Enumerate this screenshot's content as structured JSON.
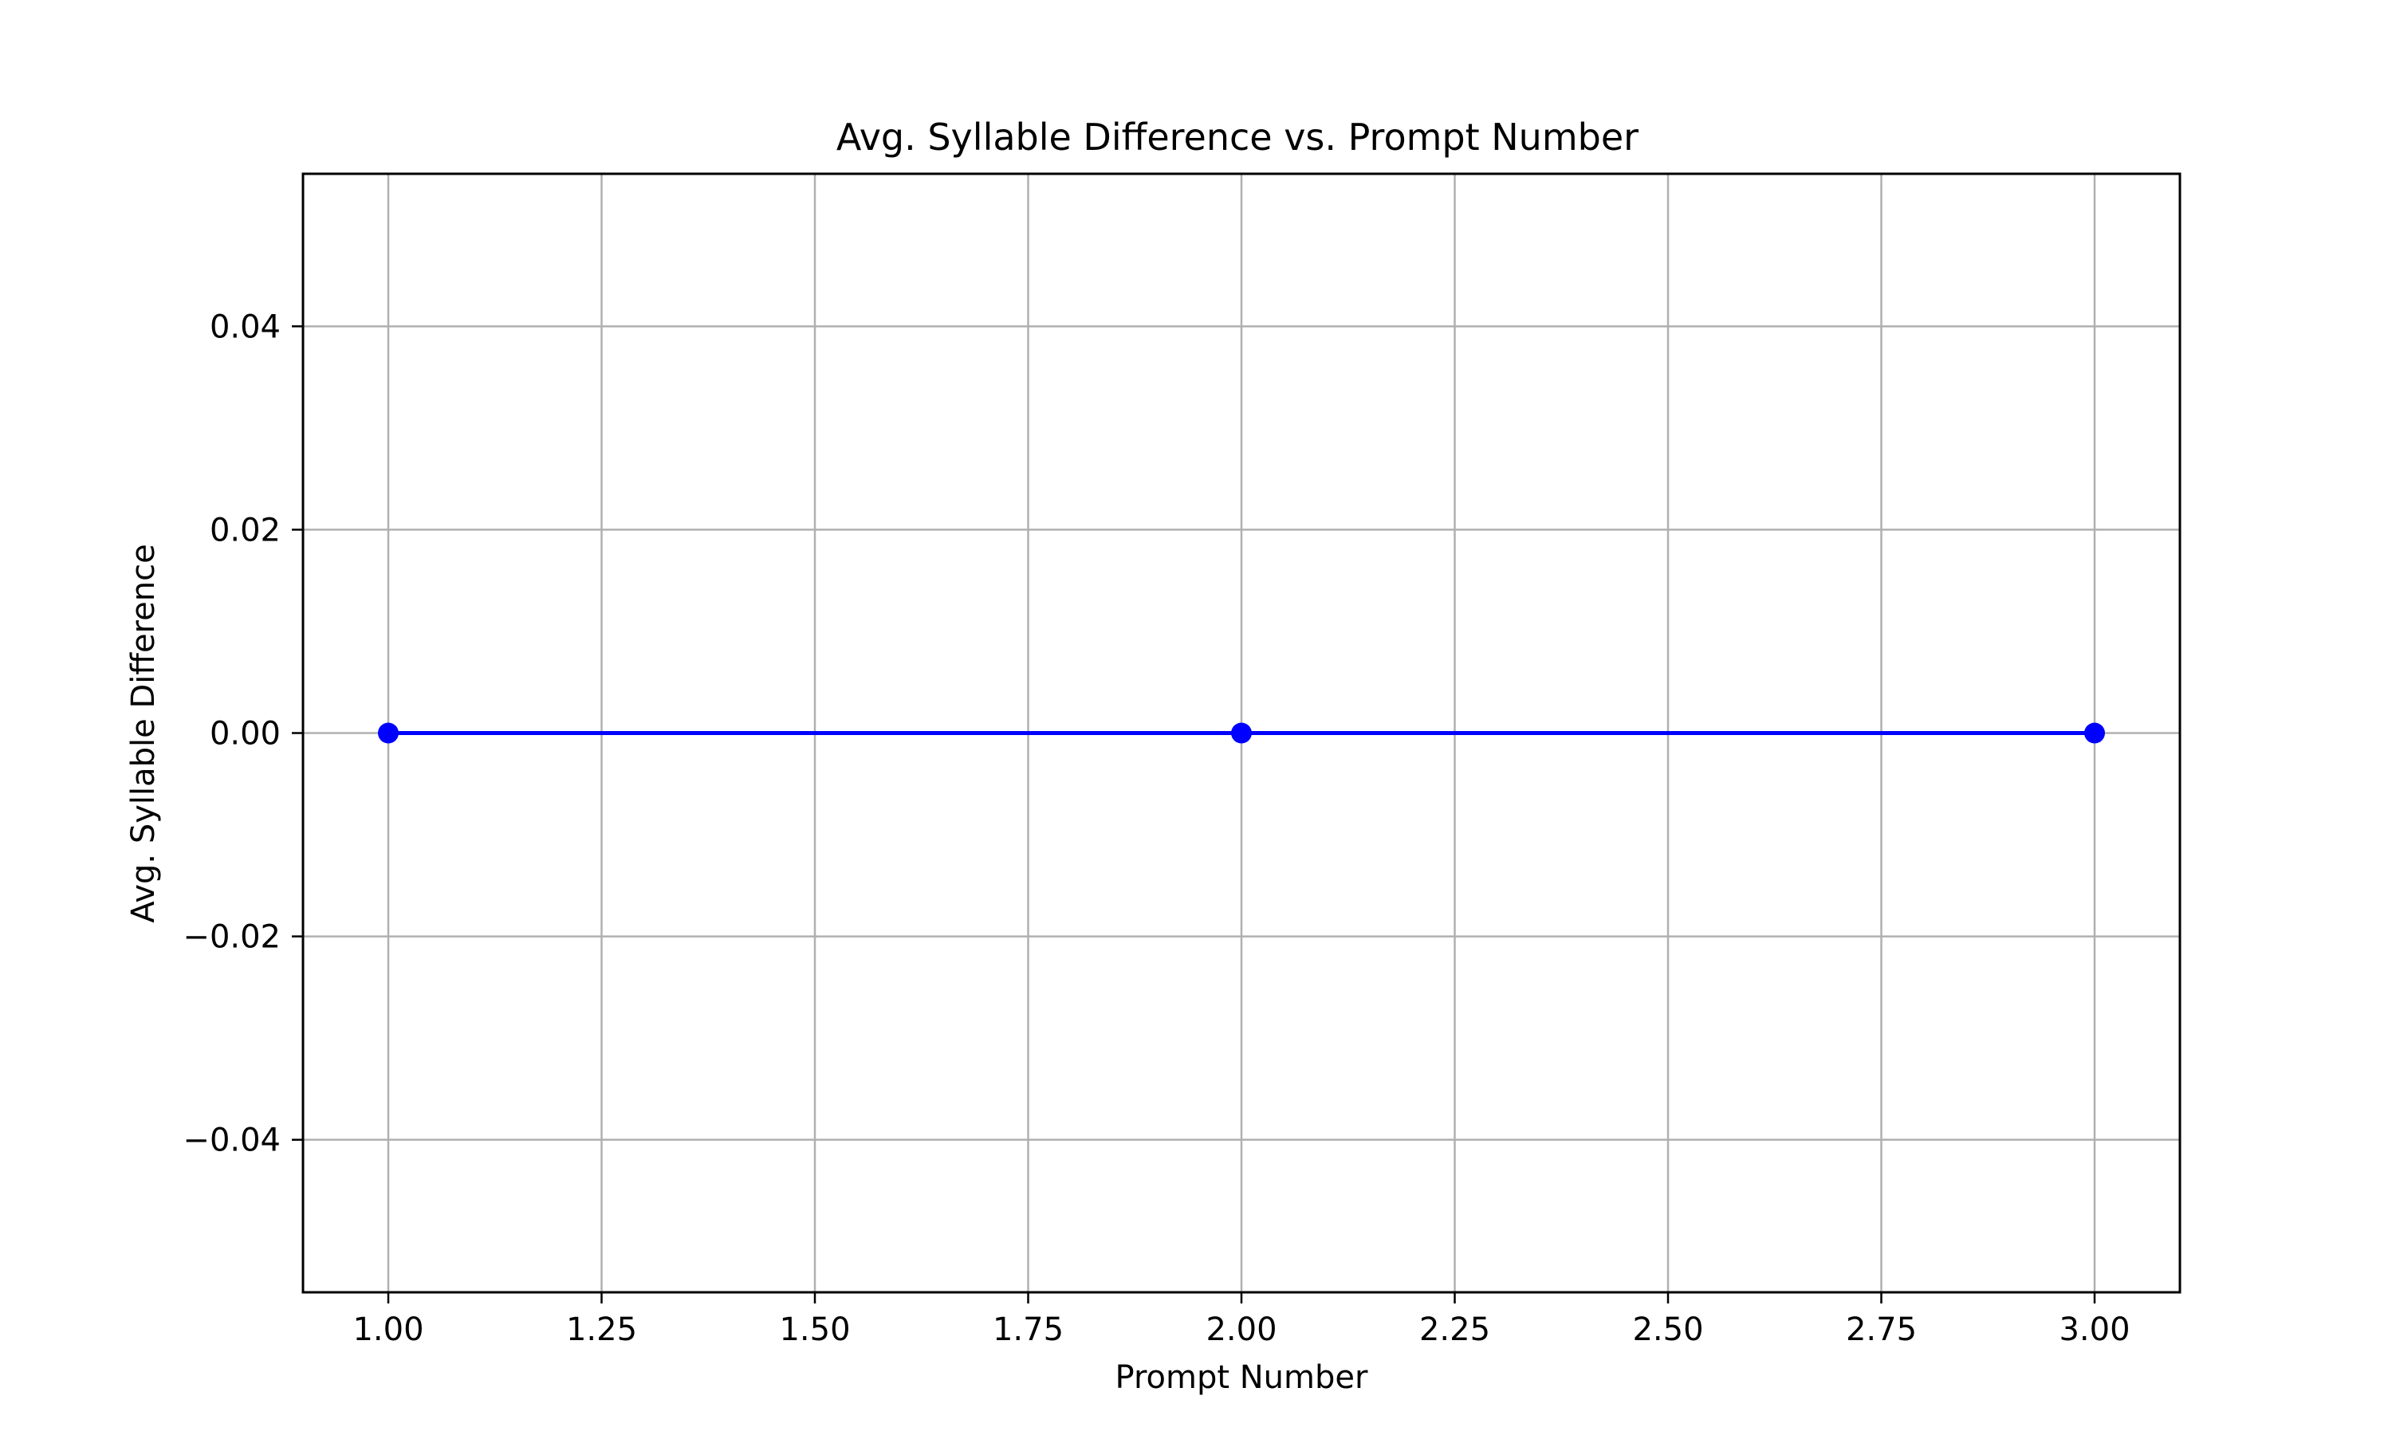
{
  "chart_data": {
    "type": "line",
    "title": "Avg. Syllable Difference vs. Prompt Number",
    "xlabel": "Prompt Number",
    "ylabel": "Avg. Syllable Difference",
    "xlim": [
      0.9,
      3.1
    ],
    "ylim": [
      -0.055,
      0.055
    ],
    "xticks": [
      1.0,
      1.25,
      1.5,
      1.75,
      2.0,
      2.25,
      2.5,
      2.75,
      3.0
    ],
    "xtick_labels": [
      "1.00",
      "1.25",
      "1.50",
      "1.75",
      "2.00",
      "2.25",
      "2.50",
      "2.75",
      "3.00"
    ],
    "yticks": [
      -0.04,
      -0.02,
      0.0,
      0.02,
      0.04
    ],
    "ytick_labels": [
      "−0.04",
      "−0.02",
      "0.00",
      "0.02",
      "0.04"
    ],
    "grid": true,
    "series": [
      {
        "name": "Avg. Syllable Difference",
        "color": "#0000ff",
        "marker": "circle",
        "x": [
          1,
          2,
          3
        ],
        "values": [
          0.0,
          0.0,
          0.0
        ]
      }
    ]
  }
}
